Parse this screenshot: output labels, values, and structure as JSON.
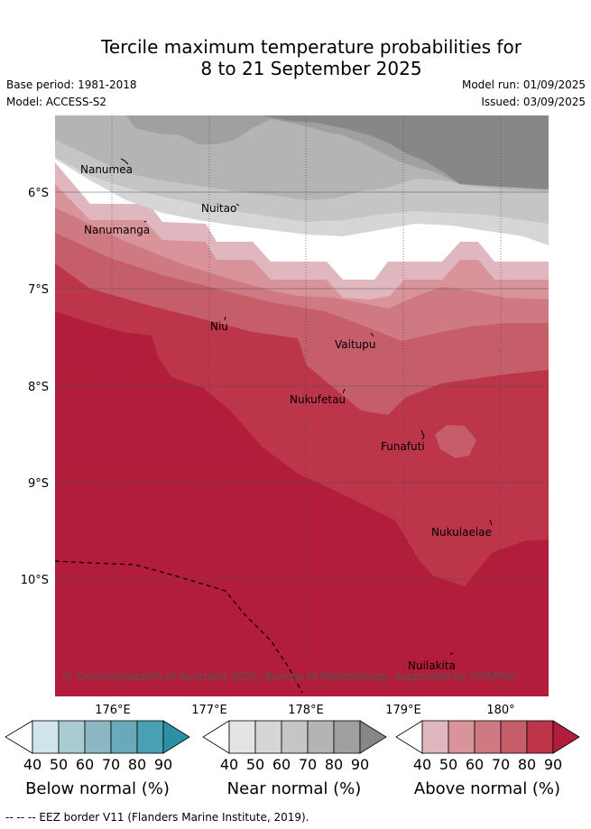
{
  "header": {
    "title_line1": "Tercile maximum temperature probabilities for",
    "title_line2": "8 to 21 September 2025",
    "base_period": "Base period: 1981-2018",
    "model": "Model: ACCESS-S2",
    "model_run": "Model run: 01/09/2025",
    "issued": "Issued: 03/09/2025"
  },
  "map": {
    "lat_labels": [
      "6°S",
      "7°S",
      "8°S",
      "9°S",
      "10°S"
    ],
    "lon_labels": [
      "176°E",
      "177°E",
      "178°E",
      "179°E",
      "180°"
    ],
    "islands": [
      "Nanumea",
      "Nuitao",
      "Nanumanga",
      "Niu",
      "Vaitupu",
      "Nukufetau",
      "Funafuti",
      "Nukulaelae",
      "Nuilakita"
    ],
    "copyright": "© Commonwealth of Australia 2025, Bureau of Meteorology, supported by COSPPac"
  },
  "colorbars": [
    {
      "title": "Below normal (%)",
      "ticks": [
        "40",
        "50",
        "60",
        "70",
        "80",
        "90"
      ],
      "colors": [
        "#ffffff",
        "#cfe5eb",
        "#a9cbd2",
        "#8bb7c3",
        "#68aabb",
        "#49a0b2",
        "#2d8fa5"
      ]
    },
    {
      "title": "Near normal (%)",
      "ticks": [
        "40",
        "50",
        "60",
        "70",
        "80",
        "90"
      ],
      "colors": [
        "#ffffff",
        "#e4e4e4",
        "#d6d6d6",
        "#c5c5c5",
        "#b4b4b4",
        "#a0a0a0",
        "#878787"
      ]
    },
    {
      "title": "Above normal (%)",
      "ticks": [
        "40",
        "50",
        "60",
        "70",
        "80",
        "90"
      ],
      "colors": [
        "#ffffff",
        "#e1b7bf",
        "#d8939b",
        "#cf7a83",
        "#c65e6a",
        "#bc3549",
        "#b11d3a"
      ]
    }
  ],
  "footer": "--  --  -- EEZ border V11 (Flanders Marine Institute, 2019)."
}
